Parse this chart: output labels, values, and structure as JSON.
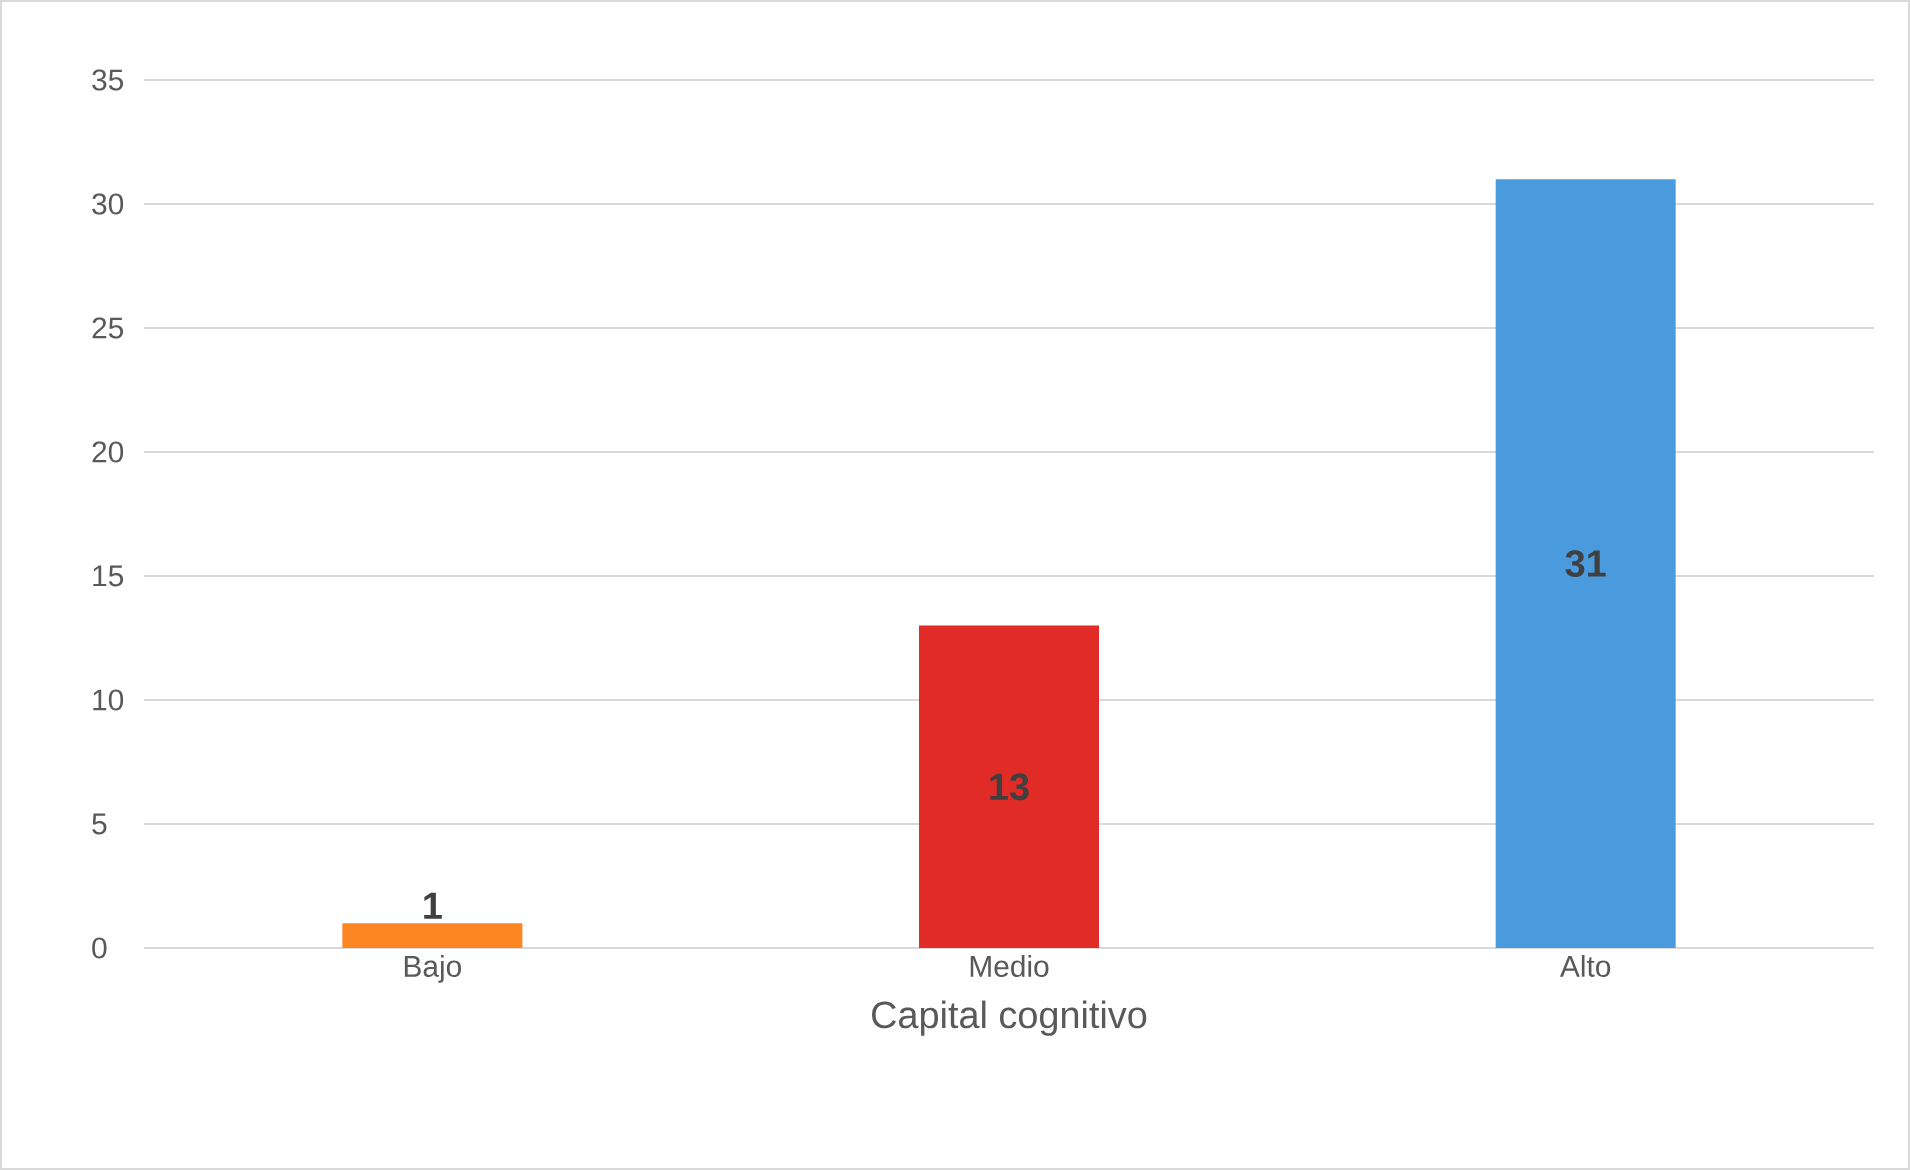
{
  "chart_data": {
    "type": "bar",
    "xlabel": "Capital cognitivo",
    "categories": [
      "Bajo",
      "Medio",
      "Alto"
    ],
    "values": [
      1,
      13,
      31
    ],
    "colors": [
      "#fd8522",
      "#e02b27",
      "#4a9ade"
    ],
    "ylim": [
      0,
      35
    ],
    "yticks": [
      0,
      5,
      10,
      15,
      20,
      25,
      30,
      35
    ],
    "grid": "y",
    "data_labels": true
  }
}
